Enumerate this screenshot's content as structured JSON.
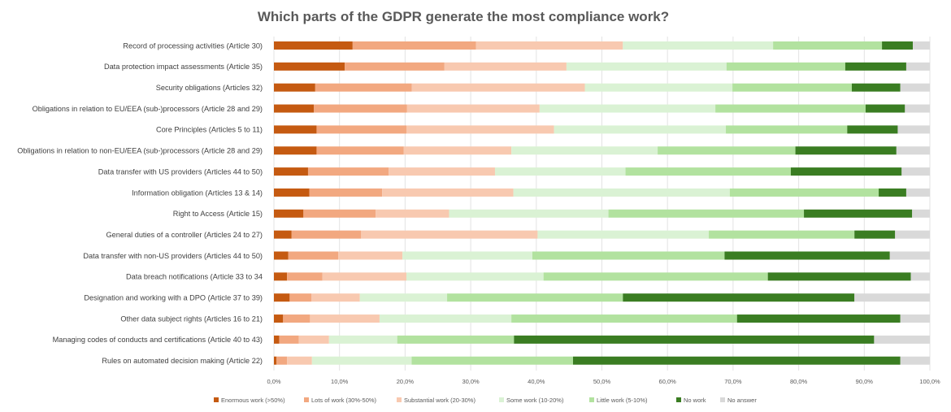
{
  "chart_data": {
    "type": "bar",
    "orientation": "horizontal",
    "stacked": "100%",
    "title": "Which parts of the GDPR generate the most compliance work?",
    "xlabel": "",
    "ylabel": "",
    "xlim": [
      0,
      100
    ],
    "x_ticks": [
      "0,0%",
      "10,0%",
      "20,0%",
      "30,0%",
      "40,0%",
      "50,0%",
      "60,0%",
      "70,0%",
      "80,0%",
      "90,0%",
      "100,0%"
    ],
    "grid": "vertical",
    "legend": "bottom",
    "categories": [
      "Record of processing activities (Article 30)",
      "Data protection impact assessments (Article 35)",
      "Security obligations (Articles 32)",
      "Obligations in relation to EU/EEA (sub-)processors (Article 28 and 29)",
      "Core Principles (Articles 5 to 11)",
      "Obligations in relation to non-EU/EEA (sub-)processors (Article 28 and 29)",
      "Data transfer with US providers (Articles 44 to 50)",
      "Information obligation (Articles 13 & 14)",
      "Right to Access (Article 15)",
      "General duties of a controller (Articles 24 to 27)",
      "Data transfer with non-US providers (Articles 44 to 50)",
      "Data breach notifications (Article 33 to 34",
      "Designation and working with a DPO (Article 37 to 39)",
      "Other data subject rights (Articles 16 to 21)",
      "Managing codes of conducts and certifications (Article 40 to 43)",
      "Rules on automated decision making (Article 22)"
    ],
    "series": [
      {
        "name": "Enormous work (>50%)",
        "color": "#c55a11",
        "values": [
          12.0,
          10.8,
          6.3,
          6.1,
          6.5,
          6.5,
          5.2,
          5.4,
          4.5,
          2.7,
          2.2,
          2.0,
          2.4,
          1.4,
          0.8,
          0.4
        ]
      },
      {
        "name": "Lots of work (30%-50%)",
        "color": "#f2a880",
        "values": [
          18.8,
          15.2,
          14.7,
          14.2,
          13.7,
          13.3,
          12.3,
          11.1,
          11.0,
          10.6,
          7.6,
          5.4,
          3.3,
          4.1,
          3.0,
          1.6
        ]
      },
      {
        "name": "Substantial work (20-30%)",
        "color": "#f8c9b0",
        "values": [
          22.4,
          18.6,
          26.4,
          20.2,
          22.5,
          16.4,
          16.2,
          20.0,
          11.2,
          26.9,
          9.8,
          12.8,
          7.4,
          10.6,
          4.6,
          3.8
        ]
      },
      {
        "name": "Some work (10-20%)",
        "color": "#daf2d4",
        "values": [
          22.9,
          24.4,
          22.5,
          26.8,
          26.2,
          22.3,
          19.9,
          33.0,
          24.3,
          26.1,
          19.8,
          20.9,
          13.3,
          20.1,
          10.4,
          15.2
        ]
      },
      {
        "name": "Little work (5-10%)",
        "color": "#b2e29f",
        "values": [
          16.6,
          18.1,
          18.2,
          22.9,
          18.5,
          21.0,
          25.2,
          22.7,
          29.8,
          22.2,
          29.3,
          34.2,
          26.8,
          34.4,
          17.8,
          24.6
        ]
      },
      {
        "name": "No work",
        "color": "#3a7d22",
        "values": [
          4.7,
          9.3,
          7.4,
          6.0,
          7.7,
          15.4,
          16.9,
          4.2,
          16.5,
          6.2,
          25.2,
          21.8,
          35.3,
          24.9,
          54.9,
          49.9
        ]
      },
      {
        "name": "No answer",
        "color": "#d9d9d9",
        "values": [
          2.6,
          3.6,
          4.5,
          3.8,
          4.9,
          5.1,
          4.3,
          3.6,
          2.7,
          5.3,
          6.1,
          2.9,
          11.5,
          4.5,
          8.5,
          4.5
        ]
      }
    ]
  }
}
